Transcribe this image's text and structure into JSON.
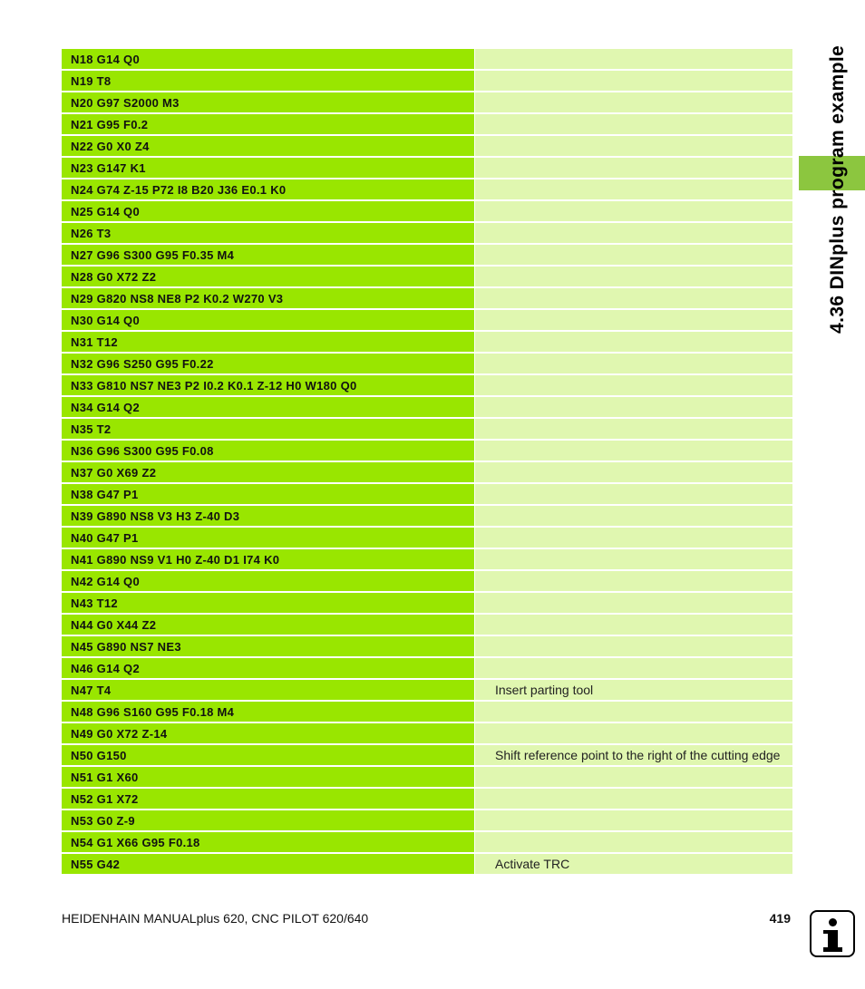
{
  "side_title": "4.36 DINplus program example",
  "program_rows": [
    {
      "code": "N18 G14 Q0",
      "comment": ""
    },
    {
      "code": "N19 T8",
      "comment": ""
    },
    {
      "code": "N20 G97 S2000 M3",
      "comment": ""
    },
    {
      "code": "N21 G95 F0.2",
      "comment": ""
    },
    {
      "code": "N22 G0 X0 Z4",
      "comment": ""
    },
    {
      "code": "N23 G147 K1",
      "comment": ""
    },
    {
      "code": "N24 G74 Z-15 P72 I8 B20 J36 E0.1 K0",
      "comment": ""
    },
    {
      "code": "N25 G14 Q0",
      "comment": ""
    },
    {
      "code": "N26 T3",
      "comment": ""
    },
    {
      "code": "N27 G96 S300 G95 F0.35 M4",
      "comment": ""
    },
    {
      "code": "N28 G0 X72 Z2",
      "comment": ""
    },
    {
      "code": "N29 G820 NS8 NE8 P2 K0.2 W270 V3",
      "comment": ""
    },
    {
      "code": "N30 G14 Q0",
      "comment": ""
    },
    {
      "code": "N31 T12",
      "comment": ""
    },
    {
      "code": "N32 G96 S250 G95 F0.22",
      "comment": ""
    },
    {
      "code": "N33 G810 NS7 NE3 P2 I0.2 K0.1 Z-12 H0 W180 Q0",
      "comment": ""
    },
    {
      "code": "N34 G14 Q2",
      "comment": ""
    },
    {
      "code": "N35 T2",
      "comment": ""
    },
    {
      "code": "N36 G96 S300 G95 F0.08",
      "comment": ""
    },
    {
      "code": "N37 G0 X69 Z2",
      "comment": ""
    },
    {
      "code": "N38 G47 P1",
      "comment": ""
    },
    {
      "code": "N39 G890 NS8 V3 H3 Z-40 D3",
      "comment": ""
    },
    {
      "code": "N40 G47 P1",
      "comment": ""
    },
    {
      "code": "N41 G890 NS9 V1 H0 Z-40 D1 I74 K0",
      "comment": ""
    },
    {
      "code": "N42 G14 Q0",
      "comment": ""
    },
    {
      "code": "N43 T12",
      "comment": ""
    },
    {
      "code": "N44 G0 X44 Z2",
      "comment": ""
    },
    {
      "code": "N45 G890 NS7 NE3",
      "comment": ""
    },
    {
      "code": "N46 G14 Q2",
      "comment": ""
    },
    {
      "code": "N47 T4",
      "comment": "Insert parting tool"
    },
    {
      "code": "N48 G96 S160 G95 F0.18 M4",
      "comment": ""
    },
    {
      "code": "N49 G0 X72 Z-14",
      "comment": ""
    },
    {
      "code": "N50 G150",
      "comment": "Shift reference point to the right of the cutting edge"
    },
    {
      "code": "N51 G1 X60",
      "comment": ""
    },
    {
      "code": "N52 G1 X72",
      "comment": ""
    },
    {
      "code": "N53 G0 Z-9",
      "comment": ""
    },
    {
      "code": "N54 G1 X66 G95 F0.18",
      "comment": ""
    },
    {
      "code": "N55 G42",
      "comment": "Activate TRC"
    }
  ],
  "footer": {
    "manual_title": "HEIDENHAIN MANUALplus 620, CNC PILOT 620/640",
    "page_number": "419"
  },
  "icons": {
    "info": "info-icon"
  },
  "colors": {
    "code_cell": "#99e600",
    "comment_cell": "#e0f7b0",
    "side_tab": "#8cc63f"
  }
}
